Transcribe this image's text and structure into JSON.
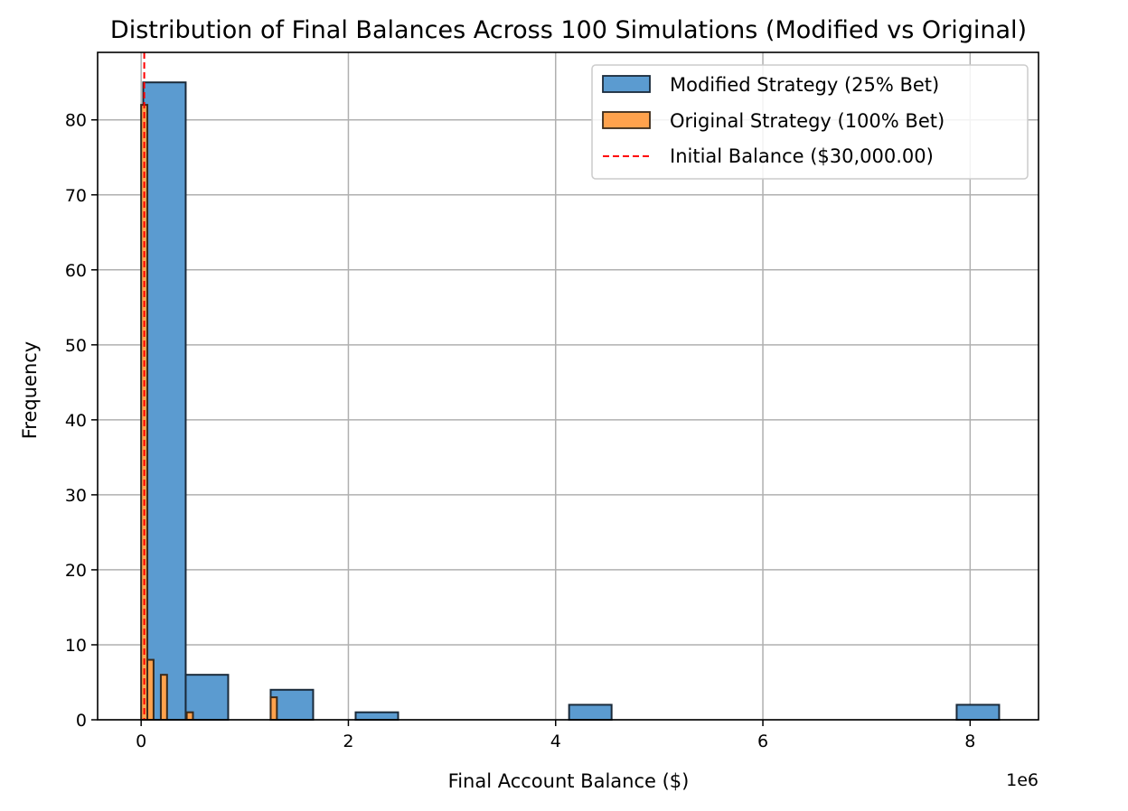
{
  "chart_data": {
    "type": "bar",
    "title": "Distribution of Final Balances Across 100 Simulations (Modified vs Original)",
    "xlabel": "Final Account Balance ($)",
    "ylabel": "Frequency",
    "x_offset_label": "1e6",
    "xlim": [
      -0.42,
      8.66
    ],
    "ylim": [
      0,
      89
    ],
    "x_ticks": [
      0,
      2,
      4,
      6,
      8
    ],
    "y_ticks": [
      0,
      10,
      20,
      30,
      40,
      50,
      60,
      70,
      80
    ],
    "grid": true,
    "legend_position": "top-right",
    "series": [
      {
        "name": "Modified Strategy (25% Bet)",
        "color": "#5b9bd0",
        "bins": [
          {
            "x0": 0.02,
            "x1": 0.43,
            "count": 85
          },
          {
            "x0": 0.43,
            "x1": 0.84,
            "count": 6
          },
          {
            "x0": 1.25,
            "x1": 1.66,
            "count": 4
          },
          {
            "x0": 2.07,
            "x1": 2.48,
            "count": 1
          },
          {
            "x0": 4.13,
            "x1": 4.54,
            "count": 2
          },
          {
            "x0": 7.87,
            "x1": 8.28,
            "count": 2
          }
        ]
      },
      {
        "name": "Original Strategy (100% Bet)",
        "color": "#ffa24d",
        "bins": [
          {
            "x0": 0.0,
            "x1": 0.06,
            "count": 82
          },
          {
            "x0": 0.06,
            "x1": 0.12,
            "count": 8
          },
          {
            "x0": 0.19,
            "x1": 0.25,
            "count": 6
          },
          {
            "x0": 0.44,
            "x1": 0.5,
            "count": 1
          },
          {
            "x0": 1.25,
            "x1": 1.31,
            "count": 3
          }
        ]
      }
    ],
    "reference_line": {
      "name": "Initial Balance ($30,000.00)",
      "x": 0.03,
      "color": "#ff0000",
      "style": "dashed"
    }
  }
}
